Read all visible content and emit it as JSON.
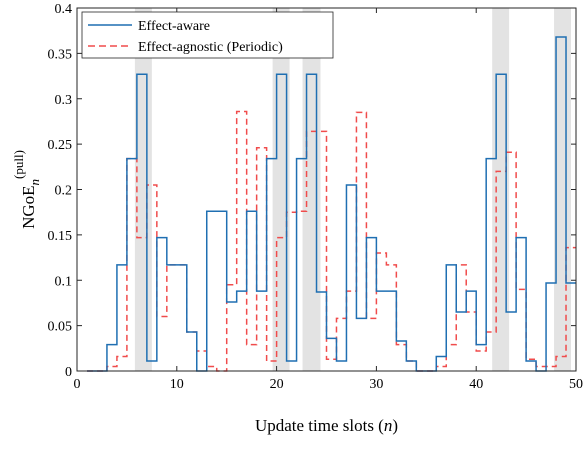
{
  "chart_data": {
    "type": "line",
    "step": true,
    "xlabel_text": "Update time slots (",
    "xlabel_var": "n",
    "xlabel_close": ")",
    "ylabel_main": "NGoE",
    "ylabel_sub": "n",
    "ylabel_sup": "(pull)",
    "xlim": [
      0,
      50
    ],
    "ylim": [
      0,
      0.4
    ],
    "xticks": [
      0,
      10,
      20,
      30,
      40,
      50
    ],
    "yticks": [
      0,
      0.05,
      0.1,
      0.15,
      0.2,
      0.25,
      0.3,
      0.35,
      0.4
    ],
    "ytick_labels": [
      "0",
      "0.05",
      "0.1",
      "0.15",
      "0.2",
      "0.25",
      "0.3",
      "0.35",
      "0.4"
    ],
    "grid": false,
    "legend_position": "top-left",
    "shaded_intervals": [
      [
        5.8,
        7.5
      ],
      [
        19.6,
        21.3
      ],
      [
        22.6,
        24.4
      ],
      [
        41.6,
        43.3
      ],
      [
        47.8,
        49.5
      ]
    ],
    "series": [
      {
        "name": "Effect-aware",
        "color": "#1f6fb2",
        "dash": "solid",
        "steps": [
          [
            1,
            0
          ],
          [
            2,
            0
          ],
          [
            3,
            0.029
          ],
          [
            4,
            0.117
          ],
          [
            5,
            0.234
          ],
          [
            6,
            0.327
          ],
          [
            7,
            0.011
          ],
          [
            8,
            0.147
          ],
          [
            9,
            0.117
          ],
          [
            10,
            0.117
          ],
          [
            11,
            0.043
          ],
          [
            12,
            0
          ],
          [
            13,
            0.176
          ],
          [
            14,
            0.176
          ],
          [
            15,
            0.076
          ],
          [
            16,
            0.088
          ],
          [
            17,
            0.176
          ],
          [
            18,
            0.088
          ],
          [
            19,
            0.234
          ],
          [
            20,
            0.327
          ],
          [
            21,
            0.011
          ],
          [
            22,
            0.234
          ],
          [
            23,
            0.327
          ],
          [
            24,
            0.087
          ],
          [
            25,
            0.036
          ],
          [
            26,
            0.011
          ],
          [
            27,
            0.205
          ],
          [
            28,
            0.058
          ],
          [
            29,
            0.147
          ],
          [
            30,
            0.088
          ],
          [
            31,
            0.088
          ],
          [
            32,
            0.033
          ],
          [
            33,
            0.011
          ],
          [
            34,
            0
          ],
          [
            35,
            0
          ],
          [
            36,
            0.016
          ],
          [
            37,
            0.117
          ],
          [
            38,
            0.065
          ],
          [
            39,
            0.088
          ],
          [
            40,
            0.029
          ],
          [
            41,
            0.234
          ],
          [
            42,
            0.327
          ],
          [
            43,
            0.065
          ],
          [
            44,
            0.147
          ],
          [
            45,
            0.011
          ],
          [
            46,
            0
          ],
          [
            47,
            0.097
          ],
          [
            48,
            0.368
          ],
          [
            49,
            0.097
          ],
          [
            50,
            0.097
          ]
        ]
      },
      {
        "name": "Effect-agnostic (Periodic)",
        "color": "#f04c4c",
        "dash": "dashed",
        "steps": [
          [
            1,
            0
          ],
          [
            2,
            0
          ],
          [
            3,
            0.005
          ],
          [
            4,
            0.016
          ],
          [
            5,
            0.234
          ],
          [
            6,
            0.147
          ],
          [
            7,
            0.205
          ],
          [
            8,
            0.06
          ],
          [
            9,
            0.117
          ],
          [
            10,
            0.117
          ],
          [
            11,
            0.043
          ],
          [
            12,
            0.022
          ],
          [
            13,
            0.005
          ],
          [
            14,
            0
          ],
          [
            15,
            0.095
          ],
          [
            16,
            0.286
          ],
          [
            17,
            0.029
          ],
          [
            18,
            0.246
          ],
          [
            19,
            0.011
          ],
          [
            20,
            0.147
          ],
          [
            21,
            0.175
          ],
          [
            22,
            0.176
          ],
          [
            23,
            0.264
          ],
          [
            24,
            0.264
          ],
          [
            25,
            0.013
          ],
          [
            26,
            0.058
          ],
          [
            27,
            0.088
          ],
          [
            28,
            0.285
          ],
          [
            29,
            0.058
          ],
          [
            30,
            0.13
          ],
          [
            31,
            0.117
          ],
          [
            32,
            0.029
          ],
          [
            33,
            0.011
          ],
          [
            34,
            0
          ],
          [
            35,
            0
          ],
          [
            36,
            0.005
          ],
          [
            37,
            0.029
          ],
          [
            38,
            0.117
          ],
          [
            39,
            0.065
          ],
          [
            40,
            0.022
          ],
          [
            41,
            0.043
          ],
          [
            42,
            0.22
          ],
          [
            43,
            0.241
          ],
          [
            44,
            0.09
          ],
          [
            45,
            0.013
          ],
          [
            46,
            0.005
          ],
          [
            47,
            0.005
          ],
          [
            48,
            0.016
          ],
          [
            49,
            0.136
          ],
          [
            50,
            0.136
          ]
        ]
      }
    ]
  }
}
